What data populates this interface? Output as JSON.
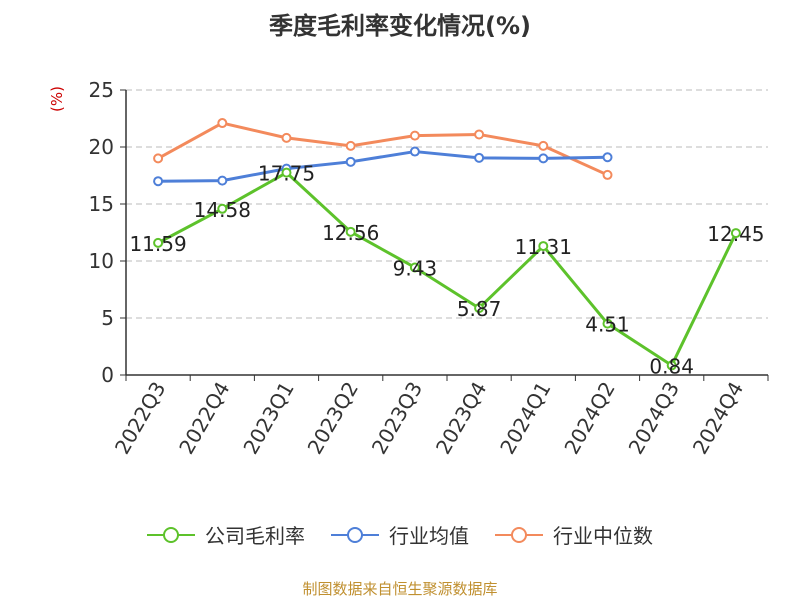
{
  "chart_data": {
    "type": "line",
    "title": "季度毛利率变化情况(%)",
    "ylabel": "(%)",
    "ylim": [
      0,
      25
    ],
    "yticks": [
      0,
      5,
      10,
      15,
      20,
      25
    ],
    "grid": true,
    "legend_position": "bottom",
    "categories": [
      "2022Q3",
      "2022Q4",
      "2023Q1",
      "2023Q2",
      "2023Q3",
      "2023Q4",
      "2024Q1",
      "2024Q2",
      "2024Q3",
      "2024Q4"
    ],
    "series": [
      {
        "name": "公司毛利率",
        "color": "#5dc22b",
        "values": [
          11.59,
          14.58,
          17.75,
          12.56,
          9.43,
          5.87,
          11.31,
          4.51,
          0.84,
          12.45
        ],
        "labels": [
          "11.59",
          "14.58",
          "17.75",
          "12.56",
          "9.43",
          "5.87",
          "11.31",
          "4.51",
          "0.84",
          "12.45"
        ]
      },
      {
        "name": "行业均值",
        "color": "#4e7fd8",
        "values": [
          17.0,
          17.05,
          18.1,
          18.7,
          19.6,
          19.05,
          19.0,
          19.1,
          null,
          null
        ]
      },
      {
        "name": "行业中位数",
        "color": "#f38a5c",
        "values": [
          19.0,
          22.1,
          20.8,
          20.1,
          21.0,
          21.1,
          20.1,
          17.55,
          null,
          null
        ]
      }
    ]
  },
  "source": "制图数据来自恒生聚源数据库"
}
